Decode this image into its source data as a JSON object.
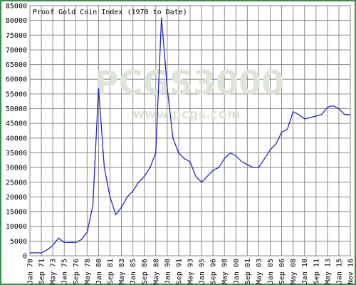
{
  "chart_data": {
    "type": "line",
    "title": "Proof Gold Coin Index (1970 to Date)",
    "watermark": "PCGS3000",
    "watermark_url": "www.pcgs.com",
    "categories": [
      "Jan 70",
      null,
      "Sep 71",
      null,
      "May 73",
      null,
      "Jan 75",
      null,
      "Sep 76",
      null,
      "May 78",
      null,
      "Jan 80",
      null,
      "Sep 81",
      null,
      "May 83",
      null,
      "Jan 85",
      null,
      "Sep 86",
      null,
      "May 88",
      null,
      "Jan 90",
      null,
      "Sep 91",
      null,
      "May 93",
      null,
      "Jan 95",
      null,
      "Sep 96",
      null,
      "May 98",
      null,
      "Jan 00",
      null,
      "Sep 01",
      null,
      "May 03",
      null,
      "Jan 05",
      null,
      "Sep 06",
      null,
      "May 08",
      null,
      "Jan 10",
      null,
      "Sep 11",
      null,
      "May 13",
      null,
      "Jan 15",
      null,
      "Nov 16"
    ],
    "series": [
      {
        "name": "Proof Gold Coin Index",
        "color": "#2424c8",
        "values": [
          1000,
          1000,
          1000,
          2000,
          3500,
          6000,
          4500,
          4500,
          4500,
          5500,
          8000,
          17000,
          57000,
          30000,
          20000,
          14000,
          16500,
          20000,
          22000,
          25000,
          27000,
          30000,
          35000,
          81000,
          57000,
          40000,
          35000,
          33000,
          32000,
          27000,
          25000,
          27000,
          29000,
          30000,
          33000,
          35000,
          34000,
          32000,
          31000,
          30000,
          30000,
          33000,
          36000,
          38000,
          42000,
          43000,
          49000,
          48000,
          46500,
          47000,
          47500,
          48000,
          50500,
          51000,
          50000,
          48000,
          48000
        ]
      }
    ],
    "ylim": [
      0,
      85000
    ],
    "yticks": [
      0,
      5000,
      10000,
      15000,
      20000,
      25000,
      30000,
      35000,
      40000,
      45000,
      50000,
      55000,
      60000,
      65000,
      70000,
      75000,
      80000,
      85000
    ],
    "grid": true
  }
}
